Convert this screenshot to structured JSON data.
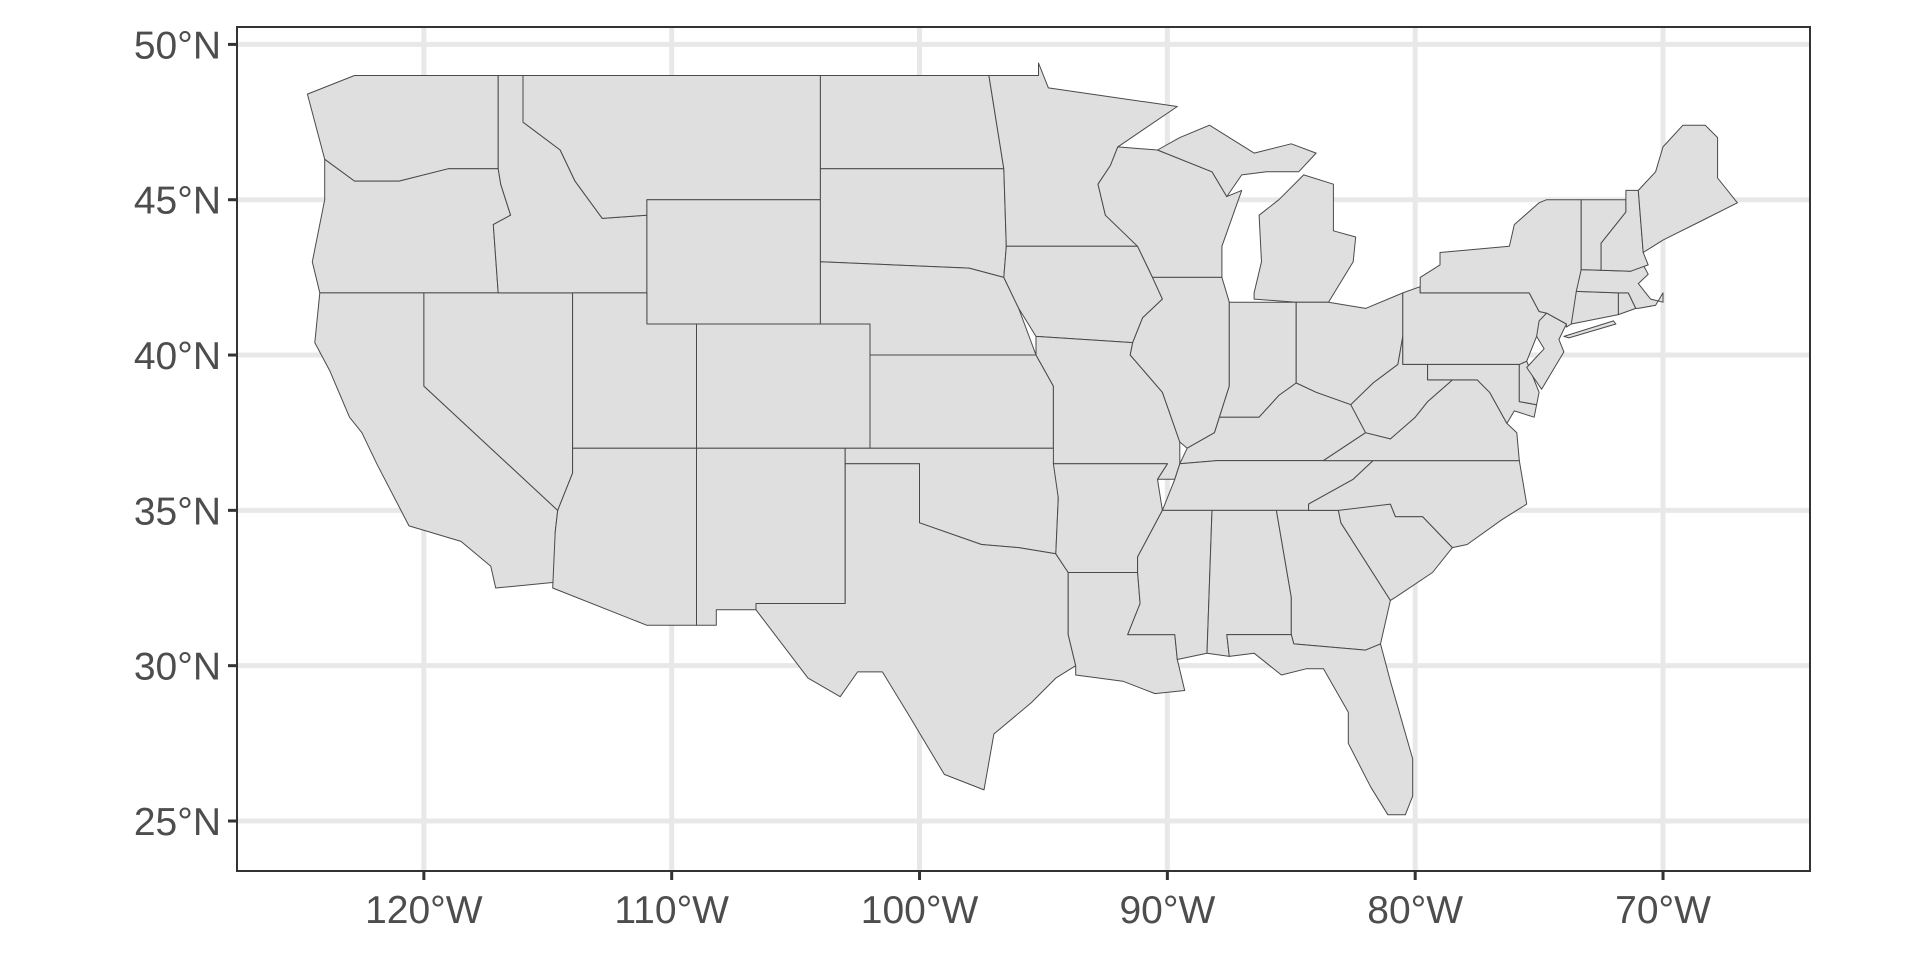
{
  "chart_data": {
    "type": "map",
    "title": "",
    "xlabel": "",
    "ylabel": "",
    "xlim": [
      -127.54,
      -64.07
    ],
    "ylim": [
      23.39,
      50.56
    ],
    "grid": true,
    "x_ticks": [
      -120,
      -110,
      -100,
      -90,
      -80,
      -70
    ],
    "x_tick_labels": [
      "120°W",
      "110°W",
      "100°W",
      "90°W",
      "80°W",
      "70°W"
    ],
    "y_ticks": [
      25,
      30,
      35,
      40,
      45,
      50
    ],
    "y_tick_labels": [
      "25°N",
      "30°N",
      "35°N",
      "40°N",
      "45°N",
      "50°N"
    ],
    "features": "contiguous US state boundaries",
    "colors": {
      "state_fill": "#dfdfdf",
      "state_border": "#4a4a4a",
      "grid": "#e8e8e8",
      "panel_border": "#333333",
      "axis_text": "#4d4d4d"
    }
  }
}
